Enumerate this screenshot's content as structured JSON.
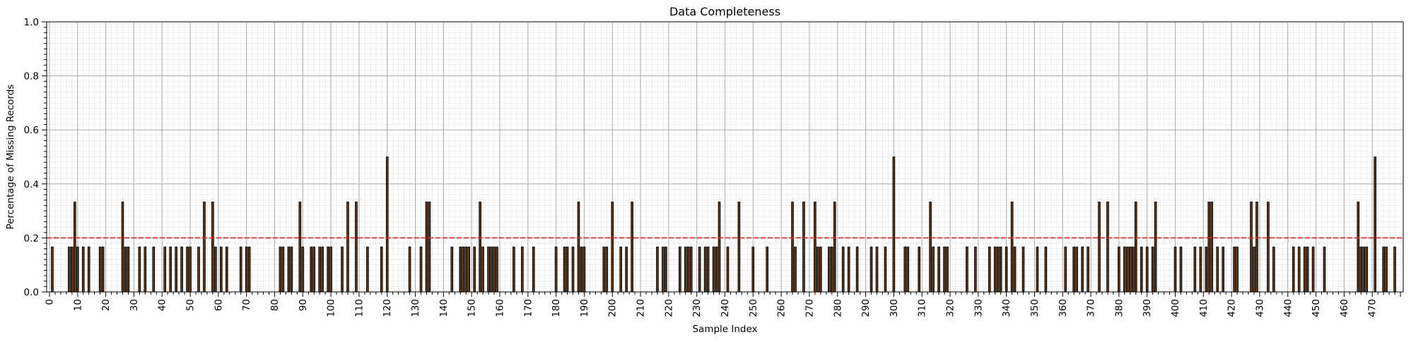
{
  "chart_data": {
    "type": "bar",
    "title": "Data Completeness",
    "xlabel": "Sample Index",
    "ylabel": "Percentage of Missing Records",
    "xlim": [
      -1,
      481
    ],
    "ylim": [
      0,
      1.0
    ],
    "x_ticks": [
      0,
      10,
      20,
      30,
      40,
      50,
      60,
      70,
      80,
      90,
      100,
      110,
      120,
      130,
      140,
      150,
      160,
      170,
      180,
      190,
      200,
      210,
      220,
      230,
      240,
      250,
      260,
      270,
      280,
      290,
      300,
      310,
      320,
      330,
      340,
      350,
      360,
      370,
      380,
      390,
      400,
      410,
      420,
      430,
      440,
      450,
      460,
      470
    ],
    "y_ticks": [
      "0.0",
      "0.2",
      "0.4",
      "0.6",
      "0.8",
      "1.0"
    ],
    "y_tick_values": [
      0,
      0.2,
      0.4,
      0.6,
      0.8,
      1.0
    ],
    "grid": "major and minor",
    "threshold": 0.2,
    "bar_color": "#5a3418",
    "bar_edge_color": "#000000",
    "threshold_color": "#e32b23",
    "points": [
      [
        1,
        0.1667
      ],
      [
        7,
        0.1667
      ],
      [
        8,
        0.1667
      ],
      [
        9,
        0.3333
      ],
      [
        10,
        0.1667
      ],
      [
        12,
        0.1667
      ],
      [
        14,
        0.1667
      ],
      [
        18,
        0.1667
      ],
      [
        19,
        0.1667
      ],
      [
        26,
        0.3333
      ],
      [
        27,
        0.1667
      ],
      [
        28,
        0.1667
      ],
      [
        32,
        0.1667
      ],
      [
        34,
        0.1667
      ],
      [
        37,
        0.1667
      ],
      [
        41,
        0.1667
      ],
      [
        43,
        0.1667
      ],
      [
        45,
        0.1667
      ],
      [
        47,
        0.1667
      ],
      [
        49,
        0.1667
      ],
      [
        50,
        0.1667
      ],
      [
        53,
        0.1667
      ],
      [
        55,
        0.3333
      ],
      [
        58,
        0.3333
      ],
      [
        59,
        0.1667
      ],
      [
        61,
        0.1667
      ],
      [
        63,
        0.1667
      ],
      [
        68,
        0.1667
      ],
      [
        70,
        0.1667
      ],
      [
        71,
        0.1667
      ],
      [
        82,
        0.1667
      ],
      [
        83,
        0.1667
      ],
      [
        85,
        0.1667
      ],
      [
        86,
        0.1667
      ],
      [
        89,
        0.3333
      ],
      [
        90,
        0.1667
      ],
      [
        93,
        0.1667
      ],
      [
        94,
        0.1667
      ],
      [
        96,
        0.1667
      ],
      [
        97,
        0.1667
      ],
      [
        99,
        0.1667
      ],
      [
        100,
        0.1667
      ],
      [
        104,
        0.1667
      ],
      [
        106,
        0.3333
      ],
      [
        109,
        0.3333
      ],
      [
        113,
        0.1667
      ],
      [
        118,
        0.1667
      ],
      [
        120,
        0.5
      ],
      [
        128,
        0.1667
      ],
      [
        132,
        0.1667
      ],
      [
        134,
        0.3333
      ],
      [
        135,
        0.3333
      ],
      [
        143,
        0.1667
      ],
      [
        146,
        0.1667
      ],
      [
        147,
        0.1667
      ],
      [
        148,
        0.1667
      ],
      [
        149,
        0.1667
      ],
      [
        151,
        0.1667
      ],
      [
        153,
        0.3333
      ],
      [
        154,
        0.1667
      ],
      [
        156,
        0.1667
      ],
      [
        157,
        0.1667
      ],
      [
        158,
        0.1667
      ],
      [
        159,
        0.1667
      ],
      [
        165,
        0.1667
      ],
      [
        168,
        0.1667
      ],
      [
        172,
        0.1667
      ],
      [
        180,
        0.1667
      ],
      [
        183,
        0.1667
      ],
      [
        184,
        0.1667
      ],
      [
        186,
        0.1667
      ],
      [
        188,
        0.3333
      ],
      [
        189,
        0.1667
      ],
      [
        190,
        0.1667
      ],
      [
        197,
        0.1667
      ],
      [
        198,
        0.1667
      ],
      [
        200,
        0.3333
      ],
      [
        203,
        0.1667
      ],
      [
        205,
        0.1667
      ],
      [
        207,
        0.3333
      ],
      [
        216,
        0.1667
      ],
      [
        218,
        0.1667
      ],
      [
        219,
        0.1667
      ],
      [
        224,
        0.1667
      ],
      [
        226,
        0.1667
      ],
      [
        227,
        0.1667
      ],
      [
        228,
        0.1667
      ],
      [
        231,
        0.1667
      ],
      [
        233,
        0.1667
      ],
      [
        234,
        0.1667
      ],
      [
        236,
        0.1667
      ],
      [
        237,
        0.1667
      ],
      [
        238,
        0.3333
      ],
      [
        241,
        0.1667
      ],
      [
        245,
        0.3333
      ],
      [
        250,
        0.1667
      ],
      [
        255,
        0.1667
      ],
      [
        264,
        0.3333
      ],
      [
        265,
        0.1667
      ],
      [
        268,
        0.3333
      ],
      [
        272,
        0.3333
      ],
      [
        273,
        0.1667
      ],
      [
        274,
        0.1667
      ],
      [
        277,
        0.1667
      ],
      [
        278,
        0.1667
      ],
      [
        279,
        0.3333
      ],
      [
        282,
        0.1667
      ],
      [
        284,
        0.1667
      ],
      [
        287,
        0.1667
      ],
      [
        292,
        0.1667
      ],
      [
        294,
        0.1667
      ],
      [
        297,
        0.1667
      ],
      [
        300,
        0.5
      ],
      [
        304,
        0.1667
      ],
      [
        305,
        0.1667
      ],
      [
        309,
        0.1667
      ],
      [
        313,
        0.3333
      ],
      [
        314,
        0.1667
      ],
      [
        316,
        0.1667
      ],
      [
        318,
        0.1667
      ],
      [
        319,
        0.1667
      ],
      [
        326,
        0.1667
      ],
      [
        329,
        0.1667
      ],
      [
        334,
        0.1667
      ],
      [
        336,
        0.1667
      ],
      [
        337,
        0.1667
      ],
      [
        338,
        0.1667
      ],
      [
        340,
        0.1667
      ],
      [
        342,
        0.3333
      ],
      [
        343,
        0.1667
      ],
      [
        346,
        0.1667
      ],
      [
        351,
        0.1667
      ],
      [
        354,
        0.1667
      ],
      [
        361,
        0.1667
      ],
      [
        364,
        0.1667
      ],
      [
        365,
        0.1667
      ],
      [
        367,
        0.1667
      ],
      [
        369,
        0.1667
      ],
      [
        373,
        0.3333
      ],
      [
        376,
        0.3333
      ],
      [
        380,
        0.1667
      ],
      [
        382,
        0.1667
      ],
      [
        383,
        0.1667
      ],
      [
        384,
        0.1667
      ],
      [
        385,
        0.1667
      ],
      [
        386,
        0.3333
      ],
      [
        388,
        0.1667
      ],
      [
        390,
        0.1667
      ],
      [
        392,
        0.1667
      ],
      [
        393,
        0.3333
      ],
      [
        400,
        0.1667
      ],
      [
        402,
        0.1667
      ],
      [
        407,
        0.1667
      ],
      [
        409,
        0.1667
      ],
      [
        411,
        0.1667
      ],
      [
        412,
        0.3333
      ],
      [
        413,
        0.3333
      ],
      [
        415,
        0.1667
      ],
      [
        417,
        0.1667
      ],
      [
        421,
        0.1667
      ],
      [
        422,
        0.1667
      ],
      [
        427,
        0.3333
      ],
      [
        428,
        0.1667
      ],
      [
        429,
        0.3333
      ],
      [
        433,
        0.3333
      ],
      [
        435,
        0.1667
      ],
      [
        442,
        0.1667
      ],
      [
        444,
        0.1667
      ],
      [
        446,
        0.1667
      ],
      [
        447,
        0.1667
      ],
      [
        449,
        0.1667
      ],
      [
        453,
        0.1667
      ],
      [
        465,
        0.3333
      ],
      [
        466,
        0.1667
      ],
      [
        467,
        0.1667
      ],
      [
        468,
        0.1667
      ],
      [
        471,
        0.5
      ],
      [
        474,
        0.1667
      ],
      [
        475,
        0.1667
      ],
      [
        478,
        0.1667
      ]
    ]
  }
}
